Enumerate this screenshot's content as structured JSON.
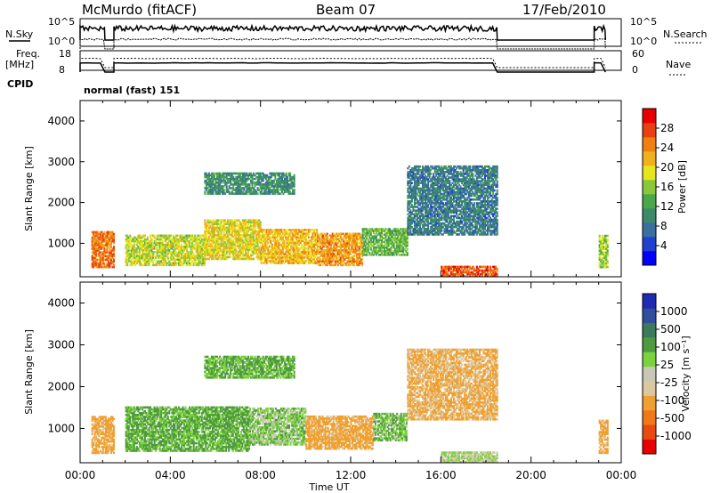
{
  "header": {
    "station": "McMurdo (fitACF)",
    "beam": "Beam 07",
    "date": "17/Feb/2010"
  },
  "status_panels": {
    "nsky_label": "N.Sky",
    "nsky_ticks": [
      "10^5",
      "10^0"
    ],
    "nsearch_label": "N.Search",
    "nsearch_ticks": [
      "10^5",
      "10^0"
    ],
    "freq_label": "Freq.",
    "freq_unit": "[MHz]",
    "freq_ticks": [
      "18",
      "8"
    ],
    "nave_label": "Nave",
    "nave_ticks": [
      "60",
      "0"
    ],
    "cpid_label": "CPID",
    "cpid_value": "normal (fast) 151"
  },
  "colors": {
    "power_scale": [
      "#0000ff",
      "#2040d0",
      "#3a6fa0",
      "#3c8a6a",
      "#4aa84a",
      "#8ac83a",
      "#e6e61e",
      "#f0b020",
      "#f08010",
      "#e84010",
      "#e60000"
    ],
    "velocity_scale": [
      "#1e2ab4",
      "#2f4f9e",
      "#3b7a5a",
      "#4f9a3f",
      "#7cd23c",
      "#c8c8b4",
      "#dcc8a0",
      "#f0a030",
      "#f07818",
      "#e84a10",
      "#e60000"
    ]
  },
  "chart_data": [
    {
      "type": "heatmap",
      "title": "",
      "quantity": "Power",
      "ylabel": "Slant Range [km]",
      "xlabel": "",
      "ylim": [
        180,
        4500
      ],
      "xlim": [
        0,
        24
      ],
      "yticks": [
        "4000",
        "3000",
        "2000",
        "1000"
      ],
      "colorbar": {
        "label": "Power [dB]",
        "ticks": [
          "28",
          "24",
          "20",
          "16",
          "12",
          "8",
          "4"
        ],
        "range": [
          0,
          32
        ]
      },
      "regions": [
        {
          "t0": 0.5,
          "t1": 1.5,
          "r0": 400,
          "r1": 1300,
          "value": 26
        },
        {
          "t0": 2.0,
          "t1": 5.5,
          "r0": 450,
          "r1": 1200,
          "value": 18
        },
        {
          "t0": 5.5,
          "t1": 8.0,
          "r0": 600,
          "r1": 1550,
          "value": 20
        },
        {
          "t0": 8.0,
          "t1": 10.5,
          "r0": 500,
          "r1": 1350,
          "value": 22
        },
        {
          "t0": 10.5,
          "t1": 12.5,
          "r0": 450,
          "r1": 1250,
          "value": 24
        },
        {
          "t0": 12.5,
          "t1": 14.5,
          "r0": 700,
          "r1": 1350,
          "value": 14
        },
        {
          "t0": 5.5,
          "t1": 9.5,
          "r0": 2200,
          "r1": 2700,
          "value": 10
        },
        {
          "t0": 14.5,
          "t1": 18.5,
          "r0": 1200,
          "r1": 2900,
          "value": 8
        },
        {
          "t0": 16.0,
          "t1": 18.5,
          "r0": 180,
          "r1": 450,
          "value": 28
        },
        {
          "t0": 23.0,
          "t1": 23.4,
          "r0": 400,
          "r1": 1200,
          "value": 16
        }
      ]
    },
    {
      "type": "heatmap",
      "title": "",
      "quantity": "Velocity",
      "ylabel": "Slant Range [km]",
      "xlabel": "Time UT",
      "ylim": [
        180,
        4500
      ],
      "xlim": [
        0,
        24
      ],
      "yticks": [
        "4000",
        "3000",
        "2000",
        "1000"
      ],
      "xticks": [
        "00:00",
        "04:00",
        "08:00",
        "12:00",
        "16:00",
        "20:00",
        "00:00"
      ],
      "colorbar": {
        "label": "Velocity [m s⁻¹]",
        "ticks": [
          "1000",
          "500",
          "100",
          "25",
          "-25",
          "-100",
          "-500",
          "-1000"
        ]
      },
      "regions": [
        {
          "t0": 0.5,
          "t1": 1.5,
          "r0": 400,
          "r1": 1300,
          "value": -150
        },
        {
          "t0": 2.0,
          "t1": 7.5,
          "r0": 450,
          "r1": 1500,
          "value": 120
        },
        {
          "t0": 7.5,
          "t1": 10.0,
          "r0": 600,
          "r1": 1500,
          "value": 60
        },
        {
          "t0": 10.0,
          "t1": 13.0,
          "r0": 500,
          "r1": 1300,
          "value": -150
        },
        {
          "t0": 13.0,
          "t1": 14.5,
          "r0": 700,
          "r1": 1350,
          "value": 80
        },
        {
          "t0": 5.5,
          "t1": 9.5,
          "r0": 2200,
          "r1": 2700,
          "value": 110
        },
        {
          "t0": 14.5,
          "t1": 18.5,
          "r0": 1200,
          "r1": 2900,
          "value": -120
        },
        {
          "t0": 16.0,
          "t1": 18.5,
          "r0": 180,
          "r1": 450,
          "value": 10
        },
        {
          "t0": 23.0,
          "t1": 23.4,
          "r0": 400,
          "r1": 1200,
          "value": -150
        }
      ]
    }
  ]
}
